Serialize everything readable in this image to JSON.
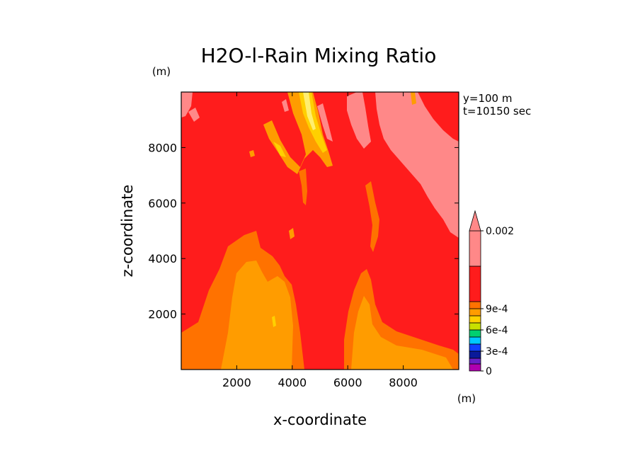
{
  "chart_data": {
    "type": "heatmap",
    "title": "H2O-l-Rain Mixing Ratio",
    "xlabel": "x-coordinate",
    "ylabel": "z-coordinate",
    "x_unit": "(m)",
    "y_unit": "(m)",
    "annotations": [
      "y=100 m",
      "t=10150 sec"
    ],
    "xlim": [
      0,
      10000
    ],
    "ylim": [
      0,
      10000
    ],
    "x_ticks": [
      2000,
      4000,
      6000,
      8000
    ],
    "y_ticks": [
      2000,
      4000,
      6000,
      8000
    ],
    "x_tick_labels": [
      "2000",
      "4000",
      "6000",
      "8000"
    ],
    "y_tick_labels": [
      "2000",
      "4000",
      "6000",
      "8000"
    ],
    "colorbar": {
      "levels": [
        "0",
        "1.5e-4",
        "3e-4",
        "4.5e-4",
        "6e-4",
        "7.5e-4",
        "9e-4",
        "0.0015",
        "0.002"
      ],
      "labels": [
        "0",
        "3e-4",
        "6e-4",
        "9e-4",
        "0.002"
      ],
      "colors": [
        "#b000b0",
        "#6a20c8",
        "#0a1a9a",
        "#1040ff",
        "#00c8ff",
        "#00d070",
        "#c8e000",
        "#ffd000",
        "#ff9c00",
        "#ff7200",
        "#ff1c1c",
        "#ff8888"
      ],
      "extend": "max"
    },
    "regions": [
      {
        "name": "background",
        "level": "7.5e-4 - 9e-4 (red)",
        "color": "#ff1c1c"
      },
      {
        "name": "lower-left orange plume",
        "level": "~6e-4 to 7.5e-4",
        "color": "#ff9c00"
      },
      {
        "name": "lower-right orange plume",
        "level": "~6e-4 to 7.5e-4",
        "color": "#ff9c00"
      },
      {
        "name": "upper yellow streak",
        "level": "~4.5e-4 to 6e-4",
        "color": "#ffd000"
      },
      {
        "name": "upper-right pink band",
        "level": "> 0.0015",
        "color": "#ff8888"
      }
    ]
  }
}
